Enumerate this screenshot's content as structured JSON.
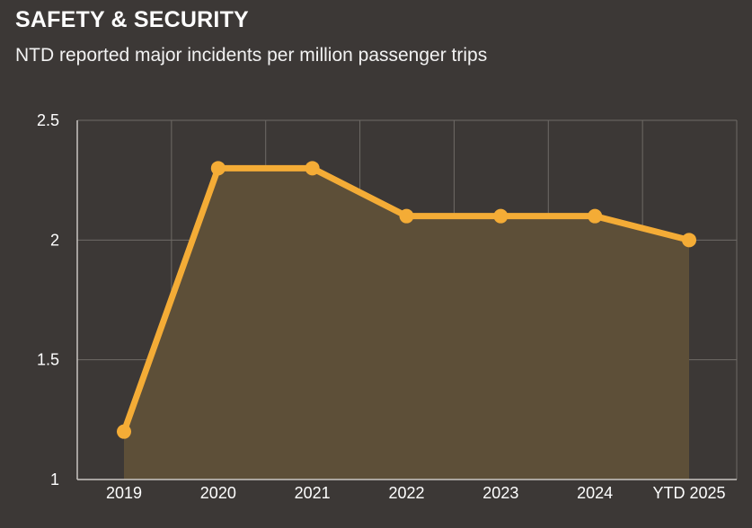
{
  "chart_data": {
    "type": "line",
    "title": "SAFETY & SECURITY",
    "subtitle": "NTD reported major incidents per million passenger trips",
    "categories": [
      "2019",
      "2020",
      "2021",
      "2022",
      "2023",
      "2024",
      "YTD 2025"
    ],
    "series": [
      {
        "values": [
          1.2,
          2.3,
          2.3,
          2.1,
          2.1,
          2.1,
          2.0
        ]
      }
    ],
    "ylim": [
      1,
      2.5
    ],
    "yticks": [
      "1",
      "1.5",
      "2",
      "2.5"
    ],
    "xlabel": "",
    "ylabel": "",
    "grid": true,
    "area_fill": true,
    "colors": {
      "line": "#f4ac36",
      "area": "#5d4f38",
      "grid": "#6e6a66",
      "axis": "#c9c6c2",
      "background": "#3c3836"
    }
  }
}
